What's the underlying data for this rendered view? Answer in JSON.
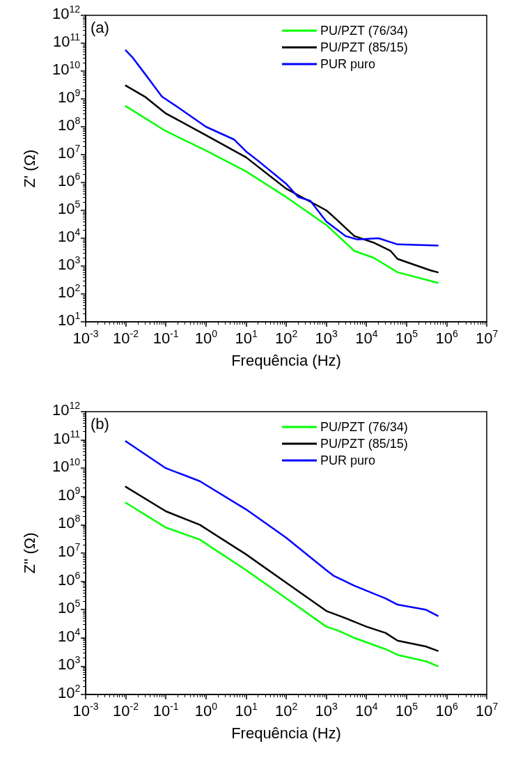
{
  "chart_data": [
    {
      "type": "line",
      "xlabel": "Frequência (Hz)",
      "ylabel": "Z' (Ω)",
      "log": "xy",
      "legend": "top right",
      "grid": false,
      "marker": "none",
      "line_style": "solid",
      "annotations": [
        "(a)"
      ],
      "xlim": [
        0.001,
        10000000
      ],
      "ylim": [
        10,
        1000000000000
      ],
      "xticks": [
        {
          "value": 0.001,
          "label": "10$^{-3}$"
        },
        {
          "value": 0.01,
          "label": "10$^{-2}$"
        },
        {
          "value": 0.1,
          "label": "10$^{-1}$"
        },
        {
          "value": 1,
          "label": "10$^{0}$"
        },
        {
          "value": 10,
          "label": "10$^{1}$"
        },
        {
          "value": 100,
          "label": "10$^{2}$"
        },
        {
          "value": 1000,
          "label": "10$^{3}$"
        },
        {
          "value": 10000,
          "label": "10$^{4}$"
        },
        {
          "value": 100000,
          "label": "10$^{5}$"
        },
        {
          "value": 1000000,
          "label": "10$^{6}$"
        },
        {
          "value": 10000000,
          "label": "10$^{7}$"
        }
      ],
      "yticks": [
        {
          "value": 10,
          "label": "10$^{1}$"
        },
        {
          "value": 100,
          "label": "10$^{2}$"
        },
        {
          "value": 1000,
          "label": "10$^{3}$"
        },
        {
          "value": 10000,
          "label": "10$^{4}$"
        },
        {
          "value": 100000,
          "label": "10$^{5}$"
        },
        {
          "value": 1000000,
          "label": "10$^{6}$"
        },
        {
          "value": 10000000,
          "label": "10$^{7}$"
        },
        {
          "value": 100000000,
          "label": "10$^{8}$"
        },
        {
          "value": 1000000000,
          "label": "10$^{9}$"
        },
        {
          "value": 10000000000,
          "label": "10$^{10}$"
        },
        {
          "value": 100000000000,
          "label": "10$^{11}$"
        },
        {
          "value": 1000000000000,
          "label": "10$^{12}$"
        }
      ],
      "series": [
        {
          "name": "PU/PZT (76/34)",
          "color": "#00ff00",
          "x": [
            0.01,
            0.1,
            1,
            10,
            100,
            1000,
            5000,
            15000,
            60000,
            600000
          ],
          "values": [
            550000000,
            70000000,
            14000000,
            2500000,
            300000,
            30000,
            3500,
            2000,
            600,
            250
          ]
        },
        {
          "name": "PU/PZT (85/15)",
          "color": "#000000",
          "x": [
            0.01,
            0.03,
            0.1,
            1,
            10,
            100,
            1000,
            1500,
            5000,
            15000,
            40000,
            60000,
            400000,
            600000
          ],
          "values": [
            3000000000,
            1200000000,
            300000000,
            50000000,
            8000000,
            600000,
            100000,
            60000,
            12000,
            7000,
            3500,
            1800,
            700,
            600
          ]
        },
        {
          "name": "PUR puro",
          "color": "#0000ff",
          "x": [
            0.01,
            0.015,
            0.03,
            0.05,
            0.08,
            0.2,
            1,
            5,
            10,
            20,
            100,
            200,
            400,
            1000,
            3000,
            6000,
            20000,
            60000,
            600000
          ],
          "values": [
            55000000000,
            30000000000,
            8000000000,
            3000000000,
            1200000000,
            500000000,
            100000000,
            35000000,
            13000000,
            6000000,
            900000,
            300000,
            220000,
            40000,
            12000,
            9000,
            10000,
            6000,
            5500
          ]
        }
      ]
    },
    {
      "type": "line",
      "xlabel": "Frequência (Hz)",
      "ylabel": "Z'' (Ω)",
      "log": "xy",
      "legend": "top right",
      "grid": false,
      "marker": "none",
      "line_style": "solid",
      "annotations": [
        "(b)"
      ],
      "xlim": [
        0.001,
        10000000
      ],
      "ylim": [
        100,
        1000000000000
      ],
      "xticks": [
        {
          "value": 0.001,
          "label": "10$^{-3}$"
        },
        {
          "value": 0.01,
          "label": "10$^{-2}$"
        },
        {
          "value": 0.1,
          "label": "10$^{-1}$"
        },
        {
          "value": 1,
          "label": "10$^{0}$"
        },
        {
          "value": 10,
          "label": "10$^{1}$"
        },
        {
          "value": 100,
          "label": "10$^{2}$"
        },
        {
          "value": 1000,
          "label": "10$^{3}$"
        },
        {
          "value": 10000,
          "label": "10$^{4}$"
        },
        {
          "value": 100000,
          "label": "10$^{5}$"
        },
        {
          "value": 1000000,
          "label": "10$^{6}$"
        },
        {
          "value": 10000000,
          "label": "10$^{7}$"
        }
      ],
      "yticks": [
        {
          "value": 100,
          "label": "10$^{2}$"
        },
        {
          "value": 1000,
          "label": "10$^{3}$"
        },
        {
          "value": 10000,
          "label": "10$^{4}$"
        },
        {
          "value": 100000,
          "label": "10$^{5}$"
        },
        {
          "value": 1000000,
          "label": "10$^{6}$"
        },
        {
          "value": 10000000,
          "label": "10$^{7}$"
        },
        {
          "value": 100000000,
          "label": "10$^{8}$"
        },
        {
          "value": 1000000000,
          "label": "10$^{9}$"
        },
        {
          "value": 10000000000,
          "label": "10$^{10}$"
        },
        {
          "value": 100000000000,
          "label": "10$^{11}$"
        },
        {
          "value": 1000000000000,
          "label": "10$^{12}$"
        }
      ],
      "series": [
        {
          "name": "PU/PZT (76/34)",
          "color": "#00ff00",
          "x": [
            0.01,
            0.1,
            0.7,
            10,
            100,
            1000,
            2000,
            5000,
            30000,
            60000,
            300000,
            600000
          ],
          "values": [
            600000000,
            80000000,
            30000000,
            2500000,
            250000,
            25000,
            18000,
            10000,
            4000,
            2500,
            1500,
            1000
          ]
        },
        {
          "name": "PU/PZT (85/15)",
          "color": "#000000",
          "x": [
            0.01,
            0.1,
            0.7,
            10,
            100,
            1000,
            3000,
            10000,
            30000,
            60000,
            300000,
            600000
          ],
          "values": [
            2200000000,
            300000000,
            100000000,
            9000000,
            900000,
            90000,
            50000,
            25000,
            15000,
            8000,
            5000,
            3500
          ]
        },
        {
          "name": "PUR puro",
          "color": "#0000ff",
          "x": [
            0.01,
            0.1,
            0.7,
            10,
            100,
            1000,
            1500,
            5000,
            30000,
            60000,
            300000,
            600000
          ],
          "values": [
            90000000000,
            10000000000,
            3500000000,
            350000000,
            35000000,
            2500000,
            1600000,
            700000,
            250000,
            150000,
            100000,
            60000
          ]
        }
      ]
    }
  ]
}
